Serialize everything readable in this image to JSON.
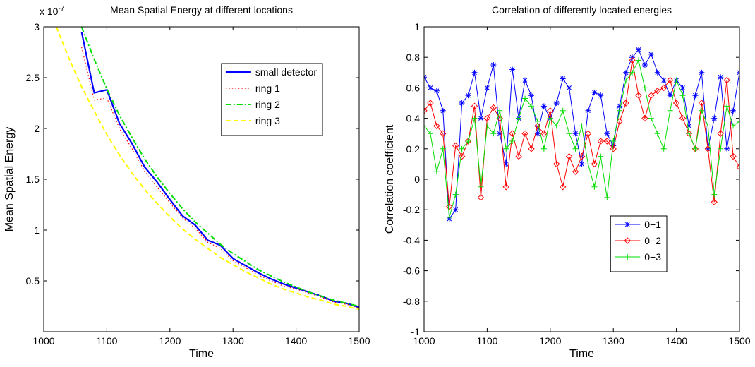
{
  "chart_data": [
    {
      "type": "line",
      "title": "Mean Spatial Energy at different locations",
      "x_label": "Time",
      "y_label": "Mean Spatial Energy",
      "y_scale_label": {
        "base": "x 10",
        "exponent": "-7"
      },
      "xlim": [
        1000,
        1500
      ],
      "xticks": [
        1000,
        1100,
        1200,
        1300,
        1400,
        1500
      ],
      "ylim": [
        0,
        3
      ],
      "yticks": [
        0.5,
        1,
        1.5,
        2,
        2.5,
        3
      ],
      "legend": "northeast",
      "x": [
        1020,
        1040,
        1060,
        1080,
        1100,
        1120,
        1140,
        1160,
        1180,
        1200,
        1220,
        1240,
        1260,
        1280,
        1300,
        1320,
        1340,
        1360,
        1380,
        1400,
        1420,
        1440,
        1460,
        1480,
        1500
      ],
      "series": [
        {
          "name": "small detector",
          "color": "#0000ff",
          "style": "solid",
          "width": 2.2,
          "values": [
            null,
            null,
            2.95,
            2.35,
            2.38,
            2.05,
            1.85,
            1.62,
            1.47,
            1.3,
            1.14,
            1.05,
            0.9,
            0.85,
            0.72,
            0.65,
            0.58,
            0.52,
            0.47,
            0.43,
            0.39,
            0.35,
            0.3,
            0.28,
            0.24
          ]
        },
        {
          "name": "ring 1",
          "color": "#ff0000",
          "style": "dotted",
          "width": 1.2,
          "values": [
            null,
            null,
            2.8,
            2.28,
            2.3,
            2.0,
            1.8,
            1.58,
            1.42,
            1.27,
            1.12,
            1.02,
            0.88,
            0.82,
            0.7,
            0.63,
            0.56,
            0.5,
            0.45,
            0.42,
            0.38,
            0.34,
            0.29,
            0.27,
            0.23
          ]
        },
        {
          "name": "ring 2",
          "color": "#00dd00",
          "style": "dashdot",
          "width": 2,
          "values": [
            null,
            null,
            3.0,
            2.68,
            2.39,
            2.13,
            1.91,
            1.7,
            1.52,
            1.36,
            1.21,
            1.08,
            0.97,
            0.86,
            0.77,
            0.69,
            0.61,
            0.55,
            0.49,
            0.44,
            0.39,
            0.35,
            0.31,
            0.28,
            0.25
          ]
        },
        {
          "name": "ring 3",
          "color": "#ffff00",
          "style": "dashed",
          "width": 2,
          "values": [
            3.0,
            2.69,
            2.41,
            2.17,
            1.94,
            1.74,
            1.56,
            1.4,
            1.26,
            1.13,
            1.01,
            0.91,
            0.82,
            0.73,
            0.66,
            0.59,
            0.53,
            0.47,
            0.42,
            0.38,
            0.34,
            0.31,
            0.27,
            0.25,
            0.22
          ]
        }
      ]
    },
    {
      "type": "line",
      "title": "Correlation of differently located energies",
      "x_label": "Time",
      "y_label": "Correlation coefficient",
      "xlim": [
        1000,
        1500
      ],
      "xticks": [
        1000,
        1100,
        1200,
        1300,
        1400,
        1500
      ],
      "ylim": [
        -1,
        1
      ],
      "yticks": [
        -1,
        -0.8,
        -0.6,
        -0.4,
        -0.2,
        0,
        0.2,
        0.4,
        0.6,
        0.8,
        1
      ],
      "legend": "southeast",
      "x": [
        1000,
        1010,
        1020,
        1030,
        1040,
        1050,
        1060,
        1070,
        1080,
        1090,
        1100,
        1110,
        1120,
        1130,
        1140,
        1150,
        1160,
        1170,
        1180,
        1190,
        1200,
        1210,
        1220,
        1230,
        1240,
        1250,
        1260,
        1270,
        1280,
        1290,
        1300,
        1310,
        1320,
        1330,
        1340,
        1350,
        1360,
        1370,
        1380,
        1390,
        1400,
        1410,
        1420,
        1430,
        1440,
        1450,
        1460,
        1470,
        1480,
        1490,
        1500
      ],
      "series": [
        {
          "name": "0−1",
          "color": "#0000ff",
          "style": "solid",
          "width": 1,
          "marker": "star",
          "values": [
            0.67,
            0.6,
            0.58,
            0.45,
            -0.26,
            -0.2,
            0.5,
            0.55,
            0.7,
            0.4,
            0.6,
            0.75,
            0.3,
            0.1,
            0.72,
            0.4,
            0.65,
            0.55,
            0.3,
            0.48,
            0.4,
            0.5,
            0.66,
            0.6,
            0.3,
            0.1,
            0.45,
            0.57,
            0.55,
            0.3,
            0.22,
            0.48,
            0.7,
            0.8,
            0.85,
            0.75,
            0.82,
            0.7,
            0.65,
            0.55,
            0.65,
            0.6,
            0.35,
            0.55,
            0.7,
            0.2,
            0.4,
            0.67,
            0.2,
            0.45,
            0.7
          ]
        },
        {
          "name": "0−2",
          "color": "#ff0000",
          "style": "solid",
          "width": 1,
          "marker": "diamond",
          "values": [
            0.45,
            0.5,
            0.35,
            0.3,
            -0.18,
            0.22,
            0.15,
            0.25,
            0.48,
            -0.12,
            0.4,
            0.47,
            0.4,
            -0.05,
            0.3,
            0.15,
            0.3,
            0.2,
            0.35,
            0.3,
            0.45,
            0.1,
            -0.05,
            0.15,
            0.05,
            0.15,
            0.3,
            0.1,
            0.25,
            0.25,
            0.2,
            0.38,
            0.5,
            0.78,
            0.55,
            0.4,
            0.55,
            0.58,
            0.6,
            0.65,
            0.5,
            0.4,
            0.3,
            0.2,
            0.5,
            0.2,
            -0.15,
            0.3,
            0.65,
            0.15,
            0.08
          ]
        },
        {
          "name": "0−3",
          "color": "#00dd00",
          "style": "solid",
          "width": 1,
          "marker": "plus",
          "values": [
            0.35,
            0.3,
            0.05,
            0.2,
            -0.25,
            -0.1,
            0.2,
            0.25,
            0.4,
            -0.05,
            0.35,
            0.3,
            0.45,
            0.2,
            0.25,
            0.4,
            0.53,
            0.48,
            0.38,
            0.2,
            0.4,
            0.35,
            0.45,
            0.3,
            0.2,
            0.35,
            0.1,
            -0.05,
            0.15,
            -0.12,
            0.25,
            0.45,
            0.65,
            0.7,
            0.78,
            0.6,
            0.4,
            0.3,
            0.2,
            0.45,
            0.65,
            0.55,
            0.3,
            0.2,
            0.45,
            0.35,
            -0.1,
            0.2,
            0.48,
            0.35,
            0.38
          ]
        }
      ]
    }
  ]
}
